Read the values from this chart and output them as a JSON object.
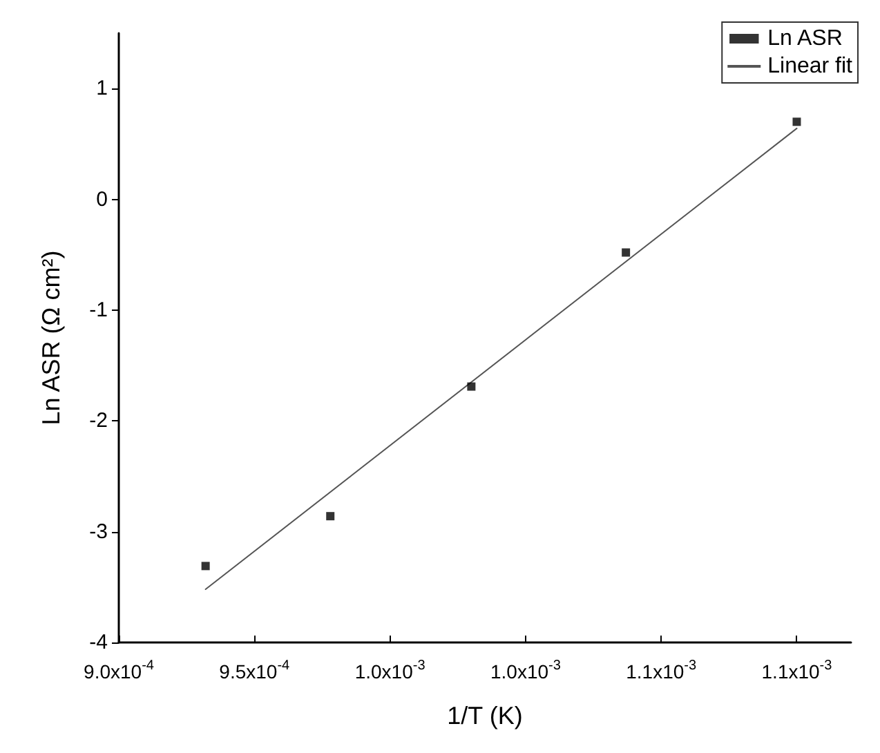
{
  "chart_data": {
    "type": "scatter",
    "xlabel": "1/T (K)",
    "ylabel": "Ln ASR (Ω cm²)",
    "xlim": [
      0.0009,
      0.00117
    ],
    "ylim": [
      -4,
      1.5
    ],
    "xticks": [
      {
        "value": 0.0009,
        "label": "9.0x10$^{-4}$"
      },
      {
        "value": 0.00095,
        "label": "9.5x10$^{-4}$"
      },
      {
        "value": 0.001,
        "label": "1.0x10$^{-3}$"
      },
      {
        "value": 0.00105,
        "label": "1.0x10$^{-3}$"
      },
      {
        "value": 0.0011,
        "label": "1.1x10$^{-3}$"
      },
      {
        "value": 0.00115,
        "label": "1.1x10$^{-3}$"
      }
    ],
    "yticks": [
      -4,
      -3,
      -2,
      -1,
      0,
      1
    ],
    "grid": false,
    "legend": "top right",
    "marker": "square",
    "series": [
      {
        "name": "Ln ASR",
        "color": "#000000",
        "x": [
          0.000932,
          0.000978,
          0.00103,
          0.001087,
          0.00115
        ],
        "values": [
          -3.31,
          -2.86,
          -1.69,
          -0.48,
          0.7
        ]
      },
      {
        "name": "Linear fit",
        "type": "line",
        "color": "#555555",
        "line_style": "solid",
        "marker": "none",
        "x": [
          0.000932,
          0.00115
        ],
        "values": [
          -3.52,
          0.64
        ]
      }
    ]
  }
}
